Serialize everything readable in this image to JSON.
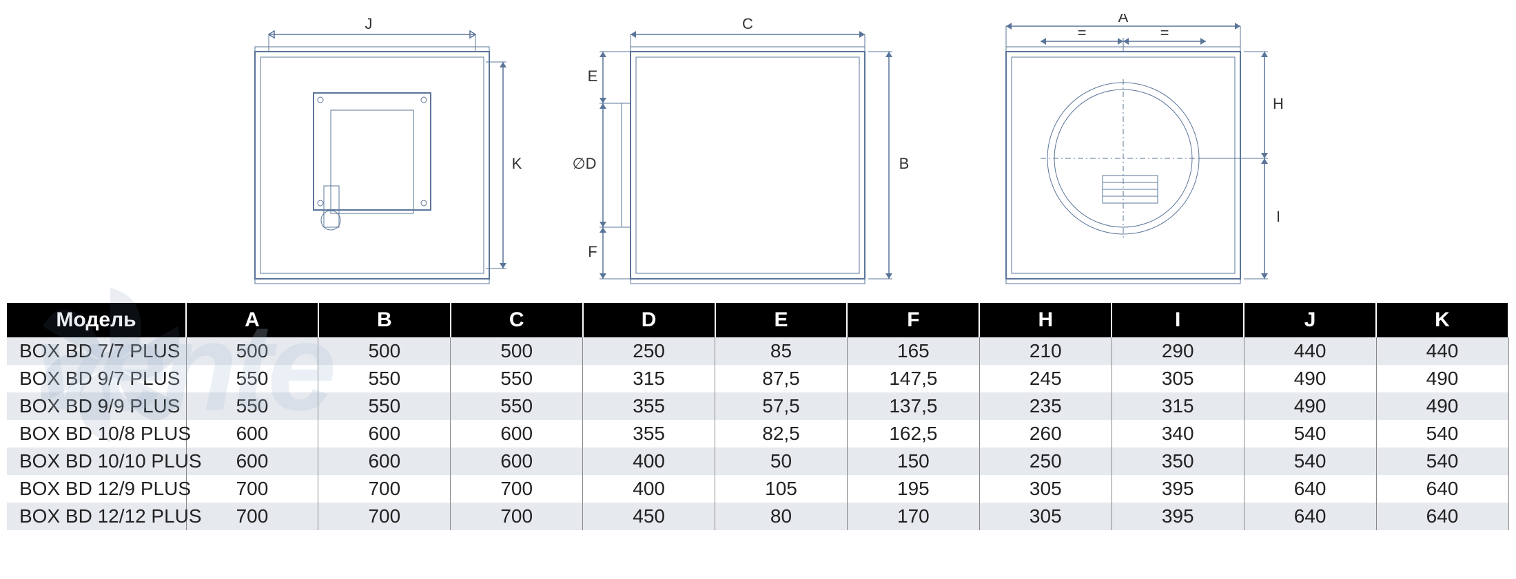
{
  "diagram": {
    "labels": {
      "A": "A",
      "B": "B",
      "C": "C",
      "D": "∅D",
      "E": "E",
      "F": "F",
      "H": "H",
      "I": "I",
      "J": "J",
      "K": "K",
      "eq": "="
    },
    "colors": {
      "line": "#5a7599",
      "box": "#5a7599",
      "bg": "#ffffff"
    }
  },
  "table": {
    "header": [
      "Модель",
      "A",
      "B",
      "C",
      "D",
      "E",
      "F",
      "H",
      "I",
      "J",
      "K"
    ],
    "rows": [
      [
        "BOX BD 7/7 PLUS",
        "500",
        "500",
        "500",
        "250",
        "85",
        "165",
        "210",
        "290",
        "440",
        "440"
      ],
      [
        "BOX BD 9/7 PLUS",
        "550",
        "550",
        "550",
        "315",
        "87,5",
        "147,5",
        "245",
        "305",
        "490",
        "490"
      ],
      [
        "BOX BD 9/9 PLUS",
        "550",
        "550",
        "550",
        "355",
        "57,5",
        "137,5",
        "235",
        "315",
        "490",
        "490"
      ],
      [
        "BOX BD 10/8 PLUS",
        "600",
        "600",
        "600",
        "355",
        "82,5",
        "162,5",
        "260",
        "340",
        "540",
        "540"
      ],
      [
        "BOX BD 10/10 PLUS",
        "600",
        "600",
        "600",
        "400",
        "50",
        "150",
        "250",
        "350",
        "540",
        "540"
      ],
      [
        "BOX BD 12/9 PLUS",
        "700",
        "700",
        "700",
        "400",
        "105",
        "195",
        "305",
        "395",
        "640",
        "640"
      ],
      [
        "BOX BD 12/12 PLUS",
        "700",
        "700",
        "700",
        "450",
        "80",
        "170",
        "305",
        "395",
        "640",
        "640"
      ]
    ],
    "alt_rows": [
      0,
      2,
      4,
      6
    ],
    "header_bg": "#000000",
    "header_fg": "#ffffff",
    "alt_bg": "#e6e9ee",
    "font_size_header": 30,
    "font_size_cell": 28
  },
  "watermark": {
    "text": "vente",
    "fan_blades": 6
  }
}
